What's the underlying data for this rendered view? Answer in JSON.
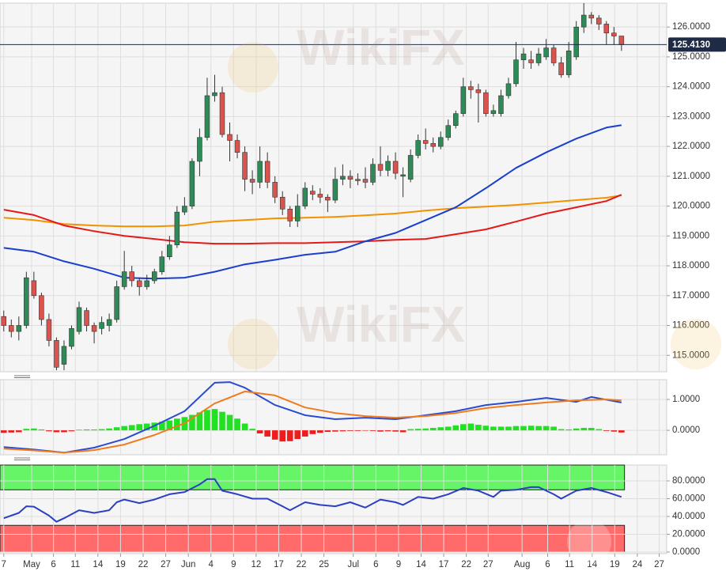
{
  "watermark": "WikiFX",
  "chart_data": [
    {
      "type": "candlestick",
      "xlim": [
        -0.5,
        88
      ],
      "xticks": [
        {
          "value": 0,
          "label": "7"
        },
        {
          "value": 3.7,
          "label": "May"
        },
        {
          "value": 6.6,
          "label": "6"
        },
        {
          "value": 9.5,
          "label": "11"
        },
        {
          "value": 12.5,
          "label": "14"
        },
        {
          "value": 15.5,
          "label": "19"
        },
        {
          "value": 18.5,
          "label": "22"
        },
        {
          "value": 21.5,
          "label": "27"
        },
        {
          "value": 24.5,
          "label": "Jun"
        },
        {
          "value": 27.5,
          "label": "4"
        },
        {
          "value": 30.5,
          "label": "9"
        },
        {
          "value": 33.5,
          "label": "12"
        },
        {
          "value": 36.5,
          "label": "17"
        },
        {
          "value": 39.5,
          "label": "22"
        },
        {
          "value": 42.5,
          "label": "25"
        },
        {
          "value": 46.4,
          "label": "Jul"
        },
        {
          "value": 49.4,
          "label": "6"
        },
        {
          "value": 52.4,
          "label": "9"
        },
        {
          "value": 55.4,
          "label": "14"
        },
        {
          "value": 58.4,
          "label": "17"
        },
        {
          "value": 61.4,
          "label": "22"
        },
        {
          "value": 64.3,
          "label": "27"
        },
        {
          "value": 68.8,
          "label": "Aug"
        },
        {
          "value": 72.2,
          "label": "6"
        },
        {
          "value": 75.1,
          "label": "11"
        },
        {
          "value": 78.1,
          "label": "14"
        },
        {
          "value": 81.1,
          "label": "19"
        },
        {
          "value": 84.1,
          "label": "24"
        },
        {
          "value": 87,
          "label": "27"
        }
      ],
      "ylim": [
        114.45,
        126.8
      ],
      "yticks": [
        {
          "value": 115,
          "label": "115.0000"
        },
        {
          "value": 116,
          "label": "116.0000"
        },
        {
          "value": 117,
          "label": "117.0000"
        },
        {
          "value": 118,
          "label": "118.0000"
        },
        {
          "value": 119,
          "label": "119.0000"
        },
        {
          "value": 120,
          "label": "120.0000"
        },
        {
          "value": 121,
          "label": "121.0000"
        },
        {
          "value": 122,
          "label": "122.0000"
        },
        {
          "value": 123,
          "label": "123.0000"
        },
        {
          "value": 124,
          "label": "124.0000"
        },
        {
          "value": 125,
          "label": "125.0000"
        },
        {
          "value": 126,
          "label": "126.0000"
        }
      ],
      "grid": true,
      "up_color": "#2e8b57",
      "down_color": "#d9534f",
      "open": [
        116.3,
        116.0,
        115.8,
        116.0,
        117.5,
        117.0,
        116.2,
        115.5,
        114.7,
        115.3,
        115.8,
        116.5,
        116.0,
        115.9,
        116.0,
        116.2,
        117.3,
        117.8,
        117.5,
        117.3,
        117.5,
        117.8,
        118.3,
        118.7,
        119.8,
        120.0,
        121.5,
        122.3,
        123.7,
        123.8,
        122.4,
        122.2,
        121.8,
        120.9,
        120.8,
        121.5,
        120.8,
        120.3,
        119.9,
        119.5,
        120.0,
        120.5,
        120.4,
        120.3,
        120.2,
        120.9,
        121.0,
        120.9,
        120.9,
        120.8,
        121.4,
        121.2,
        121.5,
        121.0,
        120.9,
        121.7,
        122.2,
        122.1,
        122.0,
        122.3,
        122.7,
        123.1,
        124.0,
        123.9,
        123.8,
        123.1,
        123.1,
        123.7,
        124.1,
        124.9,
        124.9,
        124.8,
        125.0,
        125.3,
        124.8,
        124.4,
        125.0,
        126.0,
        126.4,
        126.3,
        126.1,
        125.8,
        125.7
      ],
      "high": [
        116.5,
        116.2,
        116.3,
        117.8,
        117.8,
        117.1,
        116.4,
        115.6,
        115.5,
        116.0,
        116.8,
        116.6,
        116.1,
        116.3,
        116.4,
        117.5,
        118.5,
        118.0,
        117.6,
        117.7,
        117.9,
        118.5,
        119.0,
        120.0,
        120.3,
        121.6,
        122.6,
        124.3,
        124.4,
        124.0,
        122.8,
        122.4,
        122.0,
        121.2,
        122.0,
        121.8,
        121.0,
        120.5,
        120.0,
        120.4,
        120.8,
        120.7,
        120.6,
        120.4,
        121.3,
        121.4,
        121.2,
        121.1,
        121.3,
        121.6,
        122.0,
        121.7,
        121.8,
        121.3,
        121.9,
        122.4,
        122.6,
        122.3,
        122.5,
        122.9,
        123.2,
        124.3,
        124.2,
        124.1,
        123.9,
        123.4,
        123.9,
        124.3,
        125.5,
        125.3,
        125.2,
        125.3,
        125.6,
        125.4,
        125.0,
        125.5,
        126.2,
        126.8,
        126.5,
        126.4,
        126.2,
        126.0,
        125.7
      ],
      "low": [
        115.8,
        115.6,
        115.5,
        115.9,
        116.9,
        116.0,
        115.3,
        114.5,
        114.5,
        115.2,
        115.7,
        115.8,
        115.4,
        115.7,
        115.8,
        116.1,
        117.2,
        117.3,
        117.0,
        117.2,
        117.4,
        117.7,
        118.2,
        118.6,
        119.7,
        119.9,
        121.0,
        122.2,
        123.5,
        122.3,
        121.5,
        121.6,
        120.5,
        120.4,
        120.6,
        120.6,
        120.1,
        119.7,
        119.3,
        119.3,
        119.9,
        120.2,
        120.1,
        119.8,
        120.1,
        120.7,
        120.6,
        120.7,
        120.6,
        120.7,
        121.0,
        121.0,
        120.9,
        120.3,
        120.8,
        121.6,
        121.9,
        121.8,
        121.9,
        122.2,
        122.6,
        123.0,
        123.6,
        122.8,
        123.0,
        123.0,
        123.0,
        123.6,
        124.0,
        124.6,
        124.6,
        124.7,
        124.9,
        124.7,
        124.3,
        124.3,
        124.9,
        125.8,
        126.1,
        125.9,
        125.4,
        125.4,
        125.2
      ],
      "close": [
        116.0,
        115.8,
        116.0,
        117.6,
        117.0,
        116.2,
        115.5,
        114.6,
        115.3,
        115.9,
        116.6,
        116.0,
        115.8,
        116.1,
        116.2,
        117.3,
        117.8,
        117.5,
        117.3,
        117.5,
        117.8,
        118.3,
        118.7,
        119.8,
        120.0,
        121.5,
        122.3,
        123.7,
        123.8,
        122.4,
        122.2,
        121.8,
        120.9,
        120.8,
        121.5,
        120.8,
        120.3,
        119.9,
        119.5,
        120.0,
        120.6,
        120.4,
        120.3,
        120.2,
        120.9,
        121.0,
        120.9,
        120.85,
        120.8,
        121.4,
        121.2,
        121.5,
        121.1,
        121.05,
        121.7,
        122.2,
        122.1,
        122.0,
        122.3,
        122.7,
        123.1,
        124.0,
        123.9,
        123.8,
        123.1,
        123.2,
        123.7,
        124.1,
        124.9,
        125.1,
        124.8,
        125.1,
        125.3,
        124.8,
        124.4,
        125.2,
        126.0,
        126.4,
        126.3,
        126.1,
        125.8,
        125.7,
        125.41
      ],
      "lines": [
        {
          "color": "#f39200",
          "x": [
            0,
            4,
            8,
            12,
            16,
            20,
            24,
            28,
            32,
            36,
            40,
            44,
            48,
            52,
            56,
            60,
            64,
            68,
            72,
            76,
            80,
            82
          ],
          "values": [
            119.61,
            119.53,
            119.4,
            119.35,
            119.32,
            119.32,
            119.35,
            119.48,
            119.53,
            119.59,
            119.61,
            119.64,
            119.69,
            119.75,
            119.85,
            119.93,
            119.98,
            120.04,
            120.12,
            120.2,
            120.28,
            120.36
          ]
        },
        {
          "color": "#e41a1a",
          "x": [
            0,
            4,
            8,
            12,
            16,
            20,
            24,
            28,
            32,
            36,
            40,
            44,
            48,
            52,
            56,
            60,
            64,
            68,
            72,
            76,
            80,
            82
          ],
          "values": [
            119.88,
            119.7,
            119.35,
            119.16,
            119.0,
            118.9,
            118.79,
            118.74,
            118.74,
            118.76,
            118.76,
            118.79,
            118.82,
            118.87,
            118.9,
            119.06,
            119.22,
            119.48,
            119.75,
            119.96,
            120.17,
            120.38
          ]
        },
        {
          "color": "#1a3fcf",
          "x": [
            0,
            4,
            8,
            12,
            16,
            20,
            24,
            28,
            32,
            36,
            40,
            44,
            48,
            52,
            56,
            60,
            64,
            68,
            72,
            76,
            80,
            82
          ],
          "values": [
            118.6,
            118.47,
            118.15,
            117.9,
            117.6,
            117.57,
            117.6,
            117.8,
            118.05,
            118.2,
            118.37,
            118.47,
            118.82,
            119.1,
            119.53,
            119.96,
            120.6,
            121.28,
            121.8,
            122.26,
            122.63,
            122.71
          ]
        }
      ],
      "last_price": {
        "value": 125.413,
        "label": "125.4130"
      }
    },
    {
      "type": "macd",
      "ylim": [
        -0.79,
        1.64
      ],
      "yticks": [
        {
          "value": 0,
          "label": "0.0000"
        },
        {
          "value": 1,
          "label": "1.0000"
        }
      ],
      "grid": true,
      "pos_color": "#22e022",
      "neg_color": "#ee1c1c",
      "histogram": [
        -0.08,
        -0.07,
        -0.06,
        0.05,
        0.06,
        0.03,
        -0.03,
        -0.06,
        -0.06,
        -0.03,
        0.02,
        0.03,
        0.03,
        0.04,
        0.06,
        0.1,
        0.14,
        0.17,
        0.2,
        0.22,
        0.25,
        0.28,
        0.32,
        0.38,
        0.43,
        0.5,
        0.58,
        0.66,
        0.69,
        0.6,
        0.5,
        0.38,
        0.22,
        0.05,
        -0.1,
        -0.2,
        -0.3,
        -0.36,
        -0.35,
        -0.28,
        -0.2,
        -0.12,
        -0.08,
        -0.05,
        -0.04,
        -0.03,
        -0.02,
        -0.02,
        -0.01,
        -0.02,
        -0.04,
        -0.03,
        -0.04,
        -0.06,
        0.04,
        0.05,
        0.06,
        0.08,
        0.1,
        0.12,
        0.16,
        0.2,
        0.22,
        0.18,
        0.15,
        0.12,
        0.12,
        0.12,
        0.14,
        0.14,
        0.15,
        0.14,
        0.14,
        0.12,
        0.04,
        0.03,
        0.06,
        0.08,
        0.08,
        0.04,
        -0.02,
        -0.04,
        -0.07
      ],
      "lines": [
        {
          "color": "#2b4bd0",
          "x": [
            0,
            4,
            8,
            12,
            16,
            20,
            24,
            28,
            30,
            32,
            36,
            40,
            44,
            48,
            52,
            56,
            60,
            64,
            68,
            72,
            76,
            78,
            82
          ],
          "values": [
            -0.54,
            -0.62,
            -0.72,
            -0.56,
            -0.28,
            0.15,
            0.62,
            1.54,
            1.56,
            1.38,
            0.82,
            0.49,
            0.36,
            0.41,
            0.36,
            0.49,
            0.62,
            0.82,
            0.92,
            1.05,
            0.92,
            1.08,
            0.9
          ]
        },
        {
          "color": "#f07a1e",
          "x": [
            0,
            4,
            8,
            12,
            16,
            20,
            24,
            28,
            32,
            36,
            40,
            44,
            48,
            52,
            56,
            60,
            64,
            68,
            72,
            76,
            80,
            82
          ],
          "values": [
            -0.59,
            -0.65,
            -0.72,
            -0.64,
            -0.46,
            -0.15,
            0.23,
            0.87,
            1.26,
            1.13,
            0.74,
            0.56,
            0.46,
            0.41,
            0.46,
            0.56,
            0.72,
            0.82,
            0.9,
            0.97,
            1.0,
            0.97
          ]
        }
      ]
    },
    {
      "type": "line",
      "ylim": [
        -1.8,
        97.8
      ],
      "yticks": [
        {
          "value": 0,
          "label": "0.0000"
        },
        {
          "value": 20,
          "label": "20.0000"
        },
        {
          "value": 40,
          "label": "40.0000"
        },
        {
          "value": 60,
          "label": "60.0000"
        },
        {
          "value": 80,
          "label": "80.0000"
        }
      ],
      "grid": true,
      "bands": [
        {
          "from": 70,
          "to": 100,
          "color": "#66f566"
        },
        {
          "from": 0,
          "to": 30,
          "color": "#ff6b6b"
        }
      ],
      "lines": [
        {
          "color": "#2a3fc4",
          "x": [
            0,
            2,
            3,
            4,
            6,
            7,
            8,
            10,
            12,
            14,
            15,
            16,
            18,
            20,
            22,
            24,
            26,
            27,
            28,
            29,
            31,
            33,
            35,
            37,
            38,
            40,
            42,
            44,
            46,
            48,
            50,
            52,
            53,
            55,
            57,
            59,
            61,
            63,
            65,
            66,
            68,
            70,
            71,
            73,
            74,
            76,
            78,
            80,
            82
          ],
          "values": [
            38,
            44,
            51.5,
            51,
            41,
            34,
            38,
            47,
            44,
            47,
            56,
            59,
            55,
            59,
            65,
            67.5,
            76,
            82,
            82,
            69,
            65,
            60,
            60,
            51.5,
            47,
            56,
            53,
            51.5,
            56,
            50,
            59,
            56,
            53,
            62,
            60,
            65,
            72,
            69,
            62,
            69,
            70,
            73,
            73,
            65,
            60,
            69,
            72,
            67.5,
            62
          ]
        }
      ]
    }
  ]
}
